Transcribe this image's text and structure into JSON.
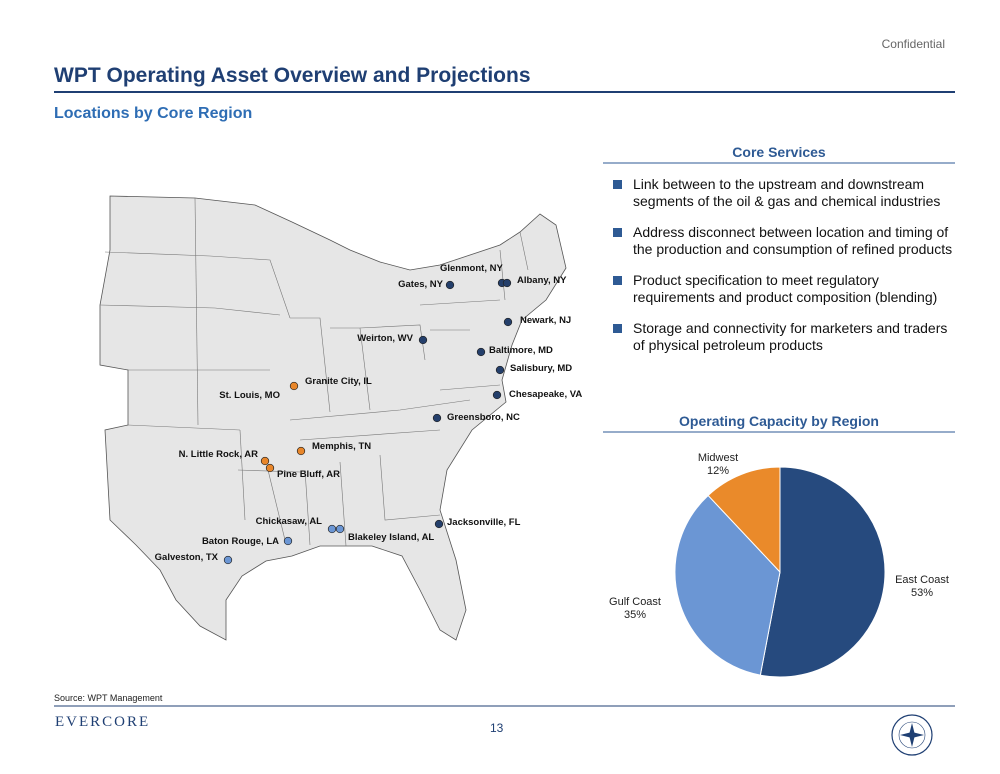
{
  "header": {
    "confidential": "Confidential",
    "title": "WPT Operating Asset Overview and Projections",
    "subtitle": "Locations by Core Region"
  },
  "map": {
    "locations": [
      {
        "label": "Glenmont, NY",
        "color": "#243f6b"
      },
      {
        "label": "Gates, NY",
        "color": "#243f6b"
      },
      {
        "label": "Albany, NY",
        "color": "#243f6b"
      },
      {
        "label": "Newark, NJ",
        "color": "#243f6b"
      },
      {
        "label": "Weirton, WV",
        "color": "#243f6b"
      },
      {
        "label": "Baltimore, MD",
        "color": "#243f6b"
      },
      {
        "label": "Salisbury, MD",
        "color": "#243f6b"
      },
      {
        "label": "Chesapeake, VA",
        "color": "#243f6b"
      },
      {
        "label": "Greensboro, NC",
        "color": "#243f6b"
      },
      {
        "label": "Granite City, IL",
        "color": "#e8862a"
      },
      {
        "label": "St. Louis, MO",
        "color": "#e8862a"
      },
      {
        "label": "Memphis, TN",
        "color": "#e8862a"
      },
      {
        "label": "N. Little Rock, AR",
        "color": "#e8862a"
      },
      {
        "label": "Pine Bluff, AR",
        "color": "#e8862a"
      },
      {
        "label": "Chickasaw, AL",
        "color": "#6b96d4"
      },
      {
        "label": "Blakeley Island, AL",
        "color": "#6b96d4"
      },
      {
        "label": "Jacksonville, FL",
        "color": "#243f6b"
      },
      {
        "label": "Baton Rouge, LA",
        "color": "#6b96d4"
      },
      {
        "label": "Galveston, TX",
        "color": "#6b96d4"
      }
    ]
  },
  "services": {
    "title": "Core Services",
    "items": [
      "Link between to the upstream and downstream segments of the oil & gas and chemical industries",
      "Address disconnect between location and timing of the production and consumption of refined products",
      "Product specification to meet regulatory requirements and product composition (blending)",
      "Storage and connectivity for marketers and traders of physical petroleum products"
    ]
  },
  "chart_data": {
    "type": "pie",
    "title": "Operating Capacity by Region",
    "categories": [
      "East Coast",
      "Gulf Coast",
      "Midwest"
    ],
    "values": [
      53,
      35,
      12
    ],
    "value_labels": [
      "53%",
      "35%",
      "12%"
    ],
    "colors": [
      "#264a7e",
      "#6b96d4",
      "#ea8a2a"
    ]
  },
  "footer": {
    "source": "Source: WPT Management",
    "brand": "EVERCORE",
    "page": "13"
  }
}
